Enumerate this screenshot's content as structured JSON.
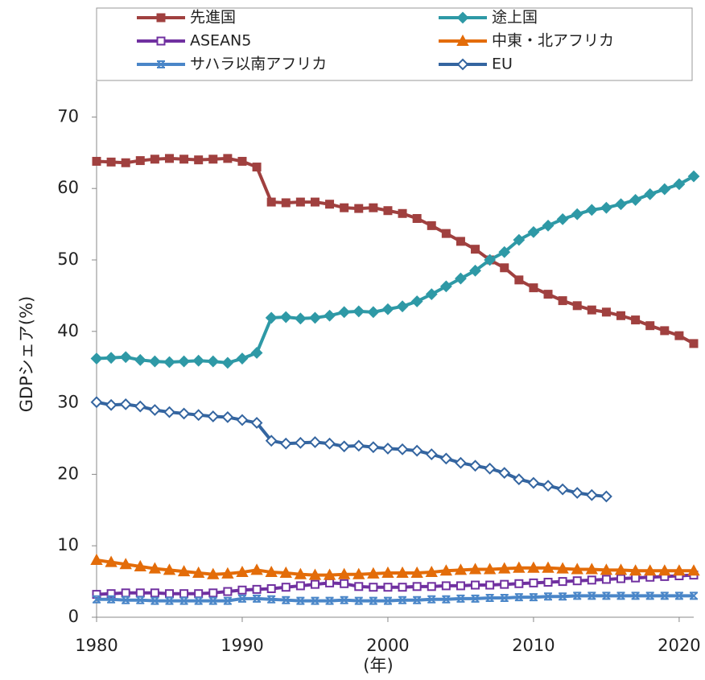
{
  "chart_data": {
    "type": "line",
    "y_label": "GDPシェア(%)",
    "x_label": "(年)",
    "x": [
      1980,
      1981,
      1982,
      1983,
      1984,
      1985,
      1986,
      1987,
      1988,
      1989,
      1990,
      1991,
      1992,
      1993,
      1994,
      1995,
      1996,
      1997,
      1998,
      1999,
      2000,
      2001,
      2002,
      2003,
      2004,
      2005,
      2006,
      2007,
      2008,
      2009,
      2010,
      2011,
      2012,
      2013,
      2014,
      2015,
      2016,
      2017,
      2018,
      2019,
      2020,
      2021
    ],
    "xlim": [
      1980,
      2021
    ],
    "xticks": [
      1980,
      1990,
      2000,
      2010,
      2020
    ],
    "ylim": [
      0,
      75
    ],
    "yticks": [
      0,
      10,
      20,
      30,
      40,
      50,
      60,
      70
    ],
    "series": [
      {
        "name": "先進国",
        "color": "#a0403f",
        "marker": "square",
        "filled": true,
        "values": [
          63.8,
          63.7,
          63.6,
          63.9,
          64.1,
          64.2,
          64.1,
          64.0,
          64.1,
          64.2,
          63.8,
          63.0,
          58.1,
          58.0,
          58.1,
          58.1,
          57.8,
          57.3,
          57.2,
          57.3,
          56.9,
          56.5,
          55.8,
          54.8,
          53.7,
          52.6,
          51.5,
          50.0,
          48.9,
          47.2,
          46.1,
          45.2,
          44.3,
          43.6,
          43.0,
          42.7,
          42.2,
          41.6,
          40.8,
          40.1,
          39.4,
          38.3
        ]
      },
      {
        "name": "途上国",
        "color": "#2e99a6",
        "marker": "diamond",
        "filled": true,
        "values": [
          36.2,
          36.3,
          36.4,
          36.0,
          35.8,
          35.7,
          35.8,
          35.9,
          35.8,
          35.6,
          36.2,
          37.0,
          41.9,
          42.0,
          41.8,
          41.9,
          42.2,
          42.7,
          42.8,
          42.7,
          43.1,
          43.5,
          44.2,
          45.2,
          46.3,
          47.4,
          48.5,
          50.0,
          51.1,
          52.8,
          53.9,
          54.8,
          55.7,
          56.4,
          57.0,
          57.3,
          57.8,
          58.4,
          59.2,
          59.9,
          60.6,
          61.7
        ]
      },
      {
        "name": "ASEAN5",
        "color": "#7030a0",
        "marker": "square",
        "filled": false,
        "values": [
          3.2,
          3.3,
          3.4,
          3.4,
          3.4,
          3.3,
          3.3,
          3.3,
          3.4,
          3.6,
          3.8,
          3.9,
          4.0,
          4.2,
          4.4,
          4.6,
          4.8,
          4.7,
          4.3,
          4.2,
          4.2,
          4.2,
          4.3,
          4.3,
          4.4,
          4.4,
          4.5,
          4.5,
          4.6,
          4.7,
          4.8,
          4.9,
          5.0,
          5.1,
          5.2,
          5.3,
          5.4,
          5.5,
          5.6,
          5.7,
          5.8,
          5.9
        ]
      },
      {
        "name": "中東・北アフリカ",
        "color": "#e36c09",
        "marker": "triangle",
        "filled": true,
        "values": [
          8.0,
          7.7,
          7.4,
          7.1,
          6.8,
          6.6,
          6.4,
          6.2,
          6.0,
          6.1,
          6.3,
          6.6,
          6.3,
          6.2,
          6.0,
          5.9,
          5.9,
          6.0,
          6.0,
          6.1,
          6.2,
          6.2,
          6.2,
          6.3,
          6.5,
          6.6,
          6.7,
          6.7,
          6.8,
          6.9,
          6.9,
          6.9,
          6.8,
          6.7,
          6.7,
          6.6,
          6.6,
          6.5,
          6.5,
          6.5,
          6.5,
          6.5
        ]
      },
      {
        "name": "サハラ以南アフリカ",
        "color": "#4a86c8",
        "marker": "cross",
        "filled": false,
        "values": [
          2.5,
          2.5,
          2.4,
          2.4,
          2.3,
          2.3,
          2.3,
          2.3,
          2.3,
          2.3,
          2.6,
          2.6,
          2.5,
          2.4,
          2.3,
          2.3,
          2.3,
          2.4,
          2.3,
          2.3,
          2.3,
          2.4,
          2.4,
          2.5,
          2.5,
          2.6,
          2.6,
          2.7,
          2.7,
          2.8,
          2.8,
          2.9,
          2.9,
          3.0,
          3.0,
          3.0,
          3.0,
          3.0,
          3.0,
          3.0,
          3.0,
          3.0
        ]
      },
      {
        "name": "EU",
        "color": "#3465a0",
        "marker": "diamond",
        "filled": false,
        "values": [
          30.1,
          29.7,
          29.8,
          29.5,
          29.0,
          28.7,
          28.5,
          28.3,
          28.1,
          28.0,
          27.6,
          27.2,
          24.7,
          24.3,
          24.4,
          24.5,
          24.3,
          23.9,
          24.0,
          23.8,
          23.6,
          23.5,
          23.3,
          22.8,
          22.2,
          21.6,
          21.2,
          20.8,
          20.2,
          19.3,
          18.8,
          18.4,
          17.9,
          17.4,
          17.1,
          16.9,
          null,
          null,
          null,
          null,
          null,
          null
        ]
      }
    ]
  }
}
